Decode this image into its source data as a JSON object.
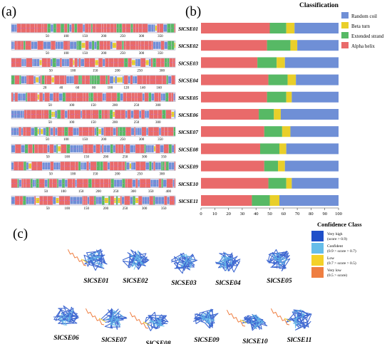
{
  "panels": {
    "a": {
      "label": "(a)"
    },
    "b": {
      "label": "(b)"
    },
    "c": {
      "label": "(c)"
    }
  },
  "colors": {
    "random_coil": "#6f8fd6",
    "beta_turn": "#e9cf2a",
    "extended_strand": "#57b965",
    "alpha_helix": "#e96a6a",
    "very_high": "#1f4fc9",
    "confident": "#66bde9",
    "low": "#f4d128",
    "very_low": "#ef7e41"
  },
  "panel_a": {
    "tracks": [
      {
        "ticks": [
          "50",
          "100",
          "150",
          "200",
          "250",
          "300",
          "350"
        ],
        "tick_max": 390
      },
      {
        "ticks": [
          "50",
          "100",
          "150",
          "200",
          "250",
          "300",
          "350"
        ],
        "tick_max": 390
      },
      {
        "ticks": [
          "50",
          "100",
          "150",
          "200",
          "250",
          "300"
        ],
        "tick_max": 330
      },
      {
        "ticks": [
          "20",
          "40",
          "60",
          "80",
          "100",
          "120",
          "140",
          "160"
        ],
        "tick_max": 180
      },
      {
        "ticks": [
          "50",
          "100",
          "150",
          "200",
          "250",
          "300"
        ],
        "tick_max": 340
      },
      {
        "ticks": [
          "50",
          "100",
          "150",
          "200",
          "250",
          "300"
        ],
        "tick_max": 340
      },
      {
        "ticks": [
          "50",
          "100",
          "150",
          "200",
          "250",
          "300",
          "350"
        ],
        "tick_max": 390
      },
      {
        "ticks": [
          "50",
          "100",
          "150",
          "200",
          "250",
          "300",
          "350"
        ],
        "tick_max": 380
      },
      {
        "ticks": [
          "50",
          "100",
          "150",
          "200",
          "250",
          "300"
        ],
        "tick_max": 330
      },
      {
        "ticks": [
          "50",
          "100",
          "150",
          "200",
          "250",
          "300",
          "350",
          "400"
        ],
        "tick_max": 420
      },
      {
        "ticks": [
          "50",
          "100",
          "150",
          "200",
          "250",
          "300",
          "350"
        ],
        "tick_max": 380
      }
    ]
  },
  "chart_data": {
    "type": "bar",
    "orientation": "horizontal",
    "stacked": true,
    "categories": [
      "SlCSE01",
      "SlCSE02",
      "SlCSE03",
      "SlCSE04",
      "SlCSE05",
      "SlCSE06",
      "SlCSE07",
      "SlCSE08",
      "SlCSE09",
      "SlCSE10",
      "SlCSE11"
    ],
    "series": [
      {
        "name": "Alpha helix",
        "values": [
          50,
          48,
          41,
          49,
          48,
          42,
          46,
          43,
          46,
          49,
          37
        ]
      },
      {
        "name": "Extended strand",
        "values": [
          12,
          17,
          14,
          14,
          14,
          11,
          13,
          14,
          10,
          13,
          13
        ]
      },
      {
        "name": "Beta turn",
        "values": [
          6,
          5,
          6,
          6,
          4,
          5,
          6,
          5,
          5,
          4,
          7
        ]
      },
      {
        "name": "Random coil",
        "values": [
          32,
          30,
          39,
          31,
          34,
          42,
          35,
          38,
          39,
          34,
          43
        ]
      }
    ],
    "xlim": [
      0,
      100
    ],
    "x_ticks": [
      "0",
      "10",
      "20",
      "30",
      "40",
      "50",
      "60",
      "70",
      "80",
      "90",
      "100"
    ],
    "legend_title": "Classification",
    "legend_entries": [
      "Random coil",
      "Beta turn",
      "Extended strand",
      "Alpha helix"
    ],
    "legend_position": "top-right"
  },
  "panel_c": {
    "legend_title": "Confidence Class",
    "classes": [
      {
        "name": "Very high",
        "range": "(score > 0.9)"
      },
      {
        "name": "Confident",
        "range": "(0.9 > score > 0.7)"
      },
      {
        "name": "Low",
        "range": "(0.7 > score > 0.5)"
      },
      {
        "name": "Very low",
        "range": "(0.5 > score)"
      }
    ],
    "structures": [
      "SlCSE01",
      "SlCSE02",
      "SlCSE03",
      "SlCSE04",
      "SlCSE05",
      "SlCSE06",
      "SlCSE07",
      "SlCSE08",
      "SlCSE09",
      "SlCSE10",
      "SlCSE11"
    ]
  }
}
